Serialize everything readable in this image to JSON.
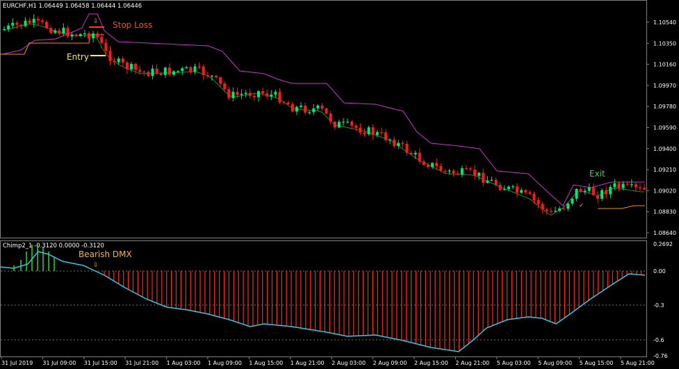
{
  "main": {
    "header": "EURCHF,H1  1.06449 1.06458 1.06444 1.06446",
    "price_labels": [
      "1.10540",
      "1.10350",
      "1.10160",
      "1.09970",
      "1.09780",
      "1.09590",
      "1.09400",
      "1.09210",
      "1.09020",
      "1.08830",
      "1.08640"
    ],
    "annotations": {
      "stop_loss": "Stop Loss",
      "entry": "Entry",
      "exit": "Exit"
    }
  },
  "indicator": {
    "header": "Chimp2_1 -0.3120 0.0000 -0.3120",
    "level_labels": [
      "0.2692",
      "0.00",
      "-0.3",
      "-0.6",
      "-0.76"
    ],
    "annotation": "Bearish DMX"
  },
  "time_axis": [
    "31 Jul 2019",
    "31 Jul 09:00",
    "31 Jul 15:00",
    "31 Jul 21:00",
    "1 Aug 03:00",
    "1 Aug 09:00",
    "1 Aug 15:00",
    "1 Aug 21:00",
    "2 Aug 03:00",
    "2 Aug 09:00",
    "2 Aug 15:00",
    "2 Aug 21:00",
    "5 Aug 03:00",
    "5 Aug 09:00",
    "5 Aug 15:00",
    "5 Aug 21:00"
  ],
  "colors": {
    "bull": "#00e676",
    "bear": "#ff1a1a",
    "envelope_upper": "#cc33cc",
    "envelope_lower": "#ff8c00",
    "mid_line": "#1f8f1f",
    "osc_line": "#38c8e8",
    "hist_pos": "#22dd22",
    "hist_neg": "#ff2a1a",
    "annotation_red": "#ff4a1a",
    "annotation_yellow": "#ffee44",
    "annotation_green": "#33dd33",
    "annotation_orange": "#ffb040"
  }
}
